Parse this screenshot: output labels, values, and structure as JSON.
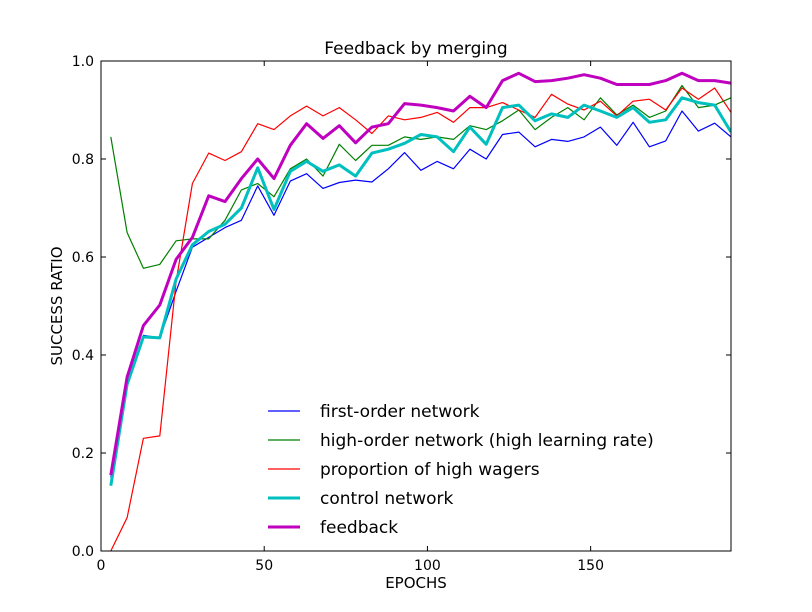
{
  "chart_data": {
    "type": "line",
    "title": "Feedback by merging",
    "xlabel": "EPOCHS",
    "ylabel": "SUCCESS RATIO",
    "xlim": [
      0,
      193
    ],
    "ylim": [
      0,
      1
    ],
    "xticks": [
      0,
      50,
      100,
      150
    ],
    "yticks": [
      0.0,
      0.2,
      0.4,
      0.6,
      0.8,
      1.0
    ],
    "legend_position": "lower-center",
    "grid": false,
    "x": [
      3,
      8,
      13,
      18,
      23,
      28,
      33,
      38,
      43,
      48,
      53,
      58,
      63,
      68,
      73,
      78,
      83,
      88,
      93,
      98,
      103,
      108,
      113,
      118,
      123,
      128,
      133,
      138,
      143,
      148,
      153,
      158,
      163,
      168,
      173,
      178,
      183,
      188,
      193
    ],
    "series": [
      {
        "name": "first-order network",
        "color": "#0000ff",
        "width": 1.2,
        "values": [
          0.15,
          0.34,
          0.44,
          0.435,
          0.53,
          0.62,
          0.64,
          0.66,
          0.675,
          0.745,
          0.685,
          0.755,
          0.77,
          0.74,
          0.752,
          0.757,
          0.753,
          0.78,
          0.813,
          0.777,
          0.795,
          0.78,
          0.82,
          0.8,
          0.85,
          0.855,
          0.825,
          0.84,
          0.836,
          0.845,
          0.865,
          0.828,
          0.875,
          0.825,
          0.837,
          0.898,
          0.857,
          0.873,
          0.845
        ]
      },
      {
        "name": "high-order network (high learning rate)",
        "color": "#008000",
        "width": 1.2,
        "values": [
          0.845,
          0.65,
          0.577,
          0.585,
          0.633,
          0.637,
          0.637,
          0.675,
          0.737,
          0.75,
          0.723,
          0.78,
          0.8,
          0.765,
          0.83,
          0.797,
          0.828,
          0.828,
          0.845,
          0.84,
          0.845,
          0.84,
          0.868,
          0.86,
          0.878,
          0.9,
          0.86,
          0.885,
          0.905,
          0.88,
          0.925,
          0.89,
          0.91,
          0.885,
          0.898,
          0.95,
          0.905,
          0.91,
          0.925
        ]
      },
      {
        "name": "proportion of high wagers",
        "color": "#ff0000",
        "width": 1.2,
        "values": [
          0.0,
          0.068,
          0.23,
          0.235,
          0.55,
          0.75,
          0.812,
          0.797,
          0.815,
          0.872,
          0.86,
          0.888,
          0.908,
          0.888,
          0.905,
          0.88,
          0.852,
          0.888,
          0.88,
          0.885,
          0.895,
          0.875,
          0.905,
          0.905,
          0.915,
          0.9,
          0.885,
          0.932,
          0.912,
          0.9,
          0.918,
          0.888,
          0.918,
          0.922,
          0.9,
          0.945,
          0.922,
          0.945,
          0.895
        ]
      },
      {
        "name": "control network",
        "color": "#00bfbf",
        "width": 3,
        "values": [
          0.133,
          0.34,
          0.437,
          0.435,
          0.555,
          0.625,
          0.652,
          0.667,
          0.7,
          0.782,
          0.697,
          0.775,
          0.795,
          0.775,
          0.788,
          0.765,
          0.812,
          0.82,
          0.832,
          0.85,
          0.845,
          0.815,
          0.865,
          0.83,
          0.905,
          0.91,
          0.878,
          0.892,
          0.885,
          0.91,
          0.898,
          0.885,
          0.905,
          0.875,
          0.88,
          0.925,
          0.915,
          0.91,
          0.855
        ]
      },
      {
        "name": "feedback",
        "color": "#bf00bf",
        "width": 3,
        "values": [
          0.155,
          0.355,
          0.46,
          0.502,
          0.595,
          0.64,
          0.725,
          0.713,
          0.76,
          0.8,
          0.76,
          0.828,
          0.872,
          0.842,
          0.868,
          0.833,
          0.865,
          0.872,
          0.913,
          0.91,
          0.905,
          0.898,
          0.928,
          0.905,
          0.96,
          0.975,
          0.958,
          0.96,
          0.965,
          0.972,
          0.965,
          0.952,
          0.952,
          0.952,
          0.96,
          0.975,
          0.96,
          0.96,
          0.955
        ]
      }
    ]
  }
}
